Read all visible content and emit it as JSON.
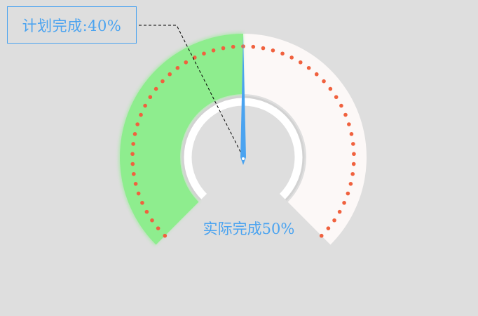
{
  "chart_data": {
    "type": "gauge",
    "min": 0,
    "max": 100,
    "value": 50,
    "progress_value": 50,
    "annotation": {
      "label": "计划完成:40%"
    },
    "value_label": "实际完成50%",
    "colors": {
      "progress": "#8eed8e",
      "track": "#fcf8f7",
      "dots": "#f0613e",
      "needle": "#4aa3f0",
      "inner_ring": "#ffffff",
      "text": "#4aa3f0",
      "background": "#dedede"
    }
  }
}
